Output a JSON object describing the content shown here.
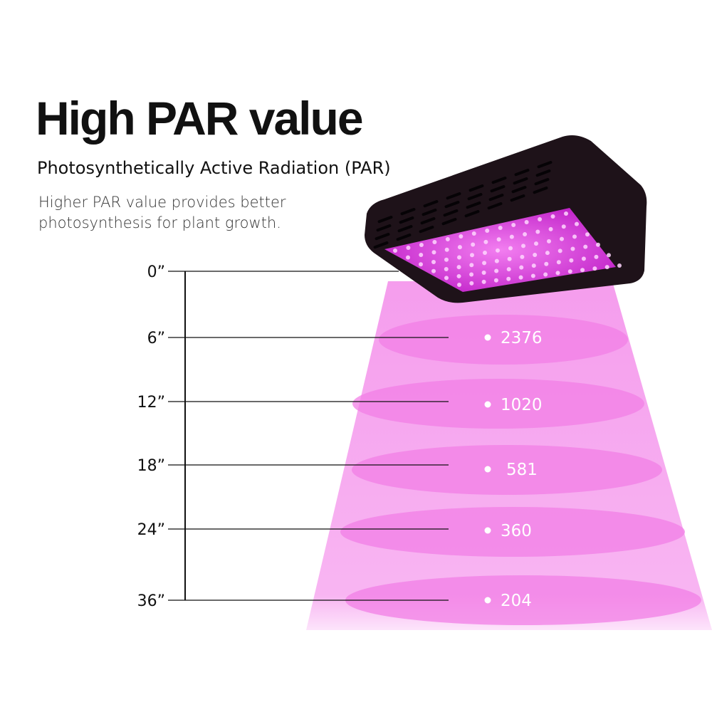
{
  "title": "High PAR value",
  "subtitle": "Photosynthetically Active Radiation (PAR)",
  "description": [
    "Higher PAR value provides better",
    "photosynthesis for plant growth."
  ],
  "colors": {
    "beam": "#f7a6ee",
    "ellipse": "#f27fe6",
    "light_body": "#1c1118",
    "led_panel": "#e040e0"
  },
  "levels": [
    {
      "distance": "0”",
      "par": ""
    },
    {
      "distance": "6”",
      "par": "2376"
    },
    {
      "distance": "12”",
      "par": "1020"
    },
    {
      "distance": "18”",
      "par": "581"
    },
    {
      "distance": "24”",
      "par": "360"
    },
    {
      "distance": "36”",
      "par": "204"
    }
  ]
}
